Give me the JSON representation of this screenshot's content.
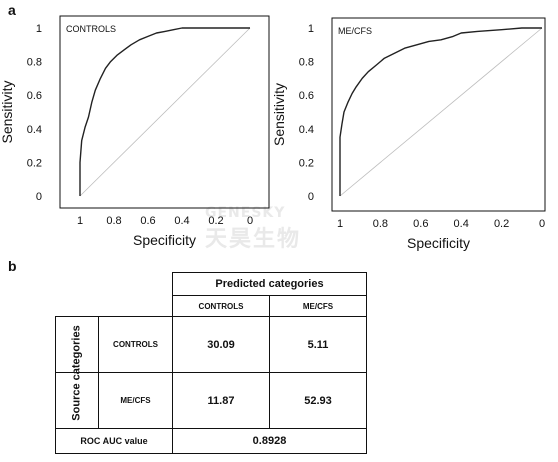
{
  "figure": {
    "panel_a_label": "a",
    "panel_b_label": "b",
    "watermark_line1": "GENESKY",
    "watermark_line2": "天昊生物"
  },
  "chart_data": [
    {
      "type": "line",
      "panel_label": "CONTROLS",
      "xlabel": "Specificity",
      "ylabel": "Sensitivity",
      "x_reversed": true,
      "xlim": [
        1,
        0
      ],
      "ylim": [
        0,
        1
      ],
      "xticks": [
        "1",
        "0.8",
        "0.6",
        "0.4",
        "0.2",
        "0"
      ],
      "yticks": [
        "0",
        "0.2",
        "0.4",
        "0.6",
        "0.8",
        "1"
      ],
      "grid": false,
      "series": [
        {
          "values": [
            [
              1,
              0
            ],
            [
              1,
              0.2
            ],
            [
              0.99,
              0.33
            ],
            [
              0.97,
              0.41
            ],
            [
              0.95,
              0.47
            ],
            [
              0.93,
              0.56
            ],
            [
              0.91,
              0.63
            ],
            [
              0.88,
              0.7
            ],
            [
              0.85,
              0.76
            ],
            [
              0.82,
              0.8
            ],
            [
              0.78,
              0.84
            ],
            [
              0.74,
              0.87
            ],
            [
              0.7,
              0.9
            ],
            [
              0.65,
              0.93
            ],
            [
              0.6,
              0.95
            ],
            [
              0.55,
              0.97
            ],
            [
              0.5,
              0.98
            ],
            [
              0.45,
              0.99
            ],
            [
              0.4,
              1
            ],
            [
              0.3,
              1
            ],
            [
              0,
              1
            ]
          ]
        },
        {
          "values": [
            [
              1,
              0
            ],
            [
              0,
              1
            ]
          ]
        }
      ]
    },
    {
      "type": "line",
      "panel_label": "ME/CFS",
      "xlabel": "Specificity",
      "ylabel": "Sensitivity",
      "x_reversed": true,
      "xlim": [
        1,
        0
      ],
      "ylim": [
        0,
        1
      ],
      "xticks": [
        "1",
        "0.8",
        "0.6",
        "0.4",
        "0.2",
        "0"
      ],
      "yticks": [
        "0",
        "0.2",
        "0.4",
        "0.6",
        "0.8",
        "1"
      ],
      "grid": false,
      "series": [
        {
          "values": [
            [
              1,
              0
            ],
            [
              1,
              0.35
            ],
            [
              0.99,
              0.43
            ],
            [
              0.98,
              0.5
            ],
            [
              0.96,
              0.56
            ],
            [
              0.94,
              0.61
            ],
            [
              0.92,
              0.65
            ],
            [
              0.89,
              0.7
            ],
            [
              0.86,
              0.74
            ],
            [
              0.82,
              0.78
            ],
            [
              0.78,
              0.82
            ],
            [
              0.73,
              0.85
            ],
            [
              0.68,
              0.88
            ],
            [
              0.62,
              0.9
            ],
            [
              0.56,
              0.92
            ],
            [
              0.5,
              0.93
            ],
            [
              0.44,
              0.95
            ],
            [
              0.4,
              0.97
            ],
            [
              0.32,
              0.98
            ],
            [
              0.2,
              0.99
            ],
            [
              0.1,
              1
            ],
            [
              0,
              1
            ]
          ]
        },
        {
          "values": [
            [
              1,
              0
            ],
            [
              0,
              1
            ]
          ]
        }
      ]
    },
    {
      "type": "table",
      "title": "Predicted categories",
      "row_group_label": "Source categories",
      "columns": [
        "CONTROLS",
        "ME/CFS"
      ],
      "rows": [
        {
          "label": "CONTROLS",
          "values": [
            "30.09",
            "5.11"
          ]
        },
        {
          "label": "ME/CFS",
          "values": [
            "11.87",
            "52.93"
          ]
        }
      ],
      "footer_label": "ROC AUC value",
      "footer_value": "0.8928"
    }
  ]
}
